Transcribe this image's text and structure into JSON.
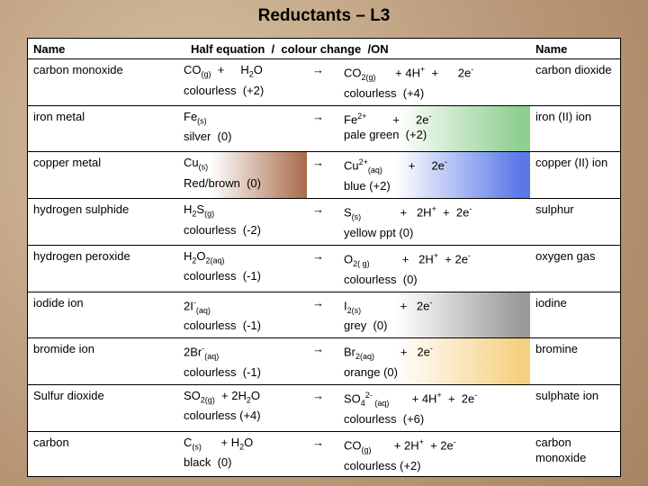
{
  "title": "Reductants – L3",
  "header": [
    "Name",
    "Half equation  /  colour change  /ON",
    "Name"
  ],
  "rows": [
    {
      "name": "carbon monoxide",
      "reactant": [
        "CO",
        {
          "sub": "(g)"
        },
        "  +     H",
        {
          "sub": "2"
        },
        "O"
      ],
      "reactant_colour": "colourless  (+2)",
      "arrow": "→",
      "product": [
        "CO",
        {
          "sub": "2(g)"
        },
        "      + 4H",
        {
          "sup": "+"
        },
        "  +      2e",
        {
          "sup": "-"
        }
      ],
      "product_colour": "colourless  (+4)",
      "product_name": "carbon dioxide"
    },
    {
      "name": "iron metal",
      "reactant": [
        "Fe",
        {
          "sub": "(s)"
        }
      ],
      "reactant_colour": "silver  (0)",
      "arrow": "→",
      "product": [
        "Fe",
        {
          "sup": "2+"
        },
        "        +     2e",
        {
          "sup": "-"
        }
      ],
      "product_colour": "pale green  (+2)",
      "product_fill": "#8fcf8f",
      "product_name": "iron (II) ion"
    },
    {
      "name": "copper metal",
      "reactant": [
        "Cu",
        {
          "sub": "(s)"
        }
      ],
      "reactant_colour": "Red/brown  (0)",
      "reactant_fill": "#a86a4a",
      "arrow": "→",
      "product": [
        "Cu",
        {
          "sup": "2+"
        },
        {
          "sub": "(aq)"
        },
        "        +     2e",
        {
          "sup": "-"
        }
      ],
      "product_colour": "blue (+2)",
      "product_fill": "#5a78e8",
      "product_name": "copper (II) ion"
    },
    {
      "name": "hydrogen sulphide",
      "reactant": [
        "H",
        {
          "sub": "2"
        },
        "S",
        {
          "sub": "(g)"
        }
      ],
      "reactant_colour": "colourless  (-2)",
      "arrow": "→",
      "product": [
        "S",
        {
          "sub": "(s)"
        },
        "            +   2H",
        {
          "sup": "+"
        },
        "  +  2e",
        {
          "sup": "-"
        }
      ],
      "product_colour": "yellow ppt (0)",
      "product_name": "sulphur"
    },
    {
      "name": "hydrogen peroxide",
      "reactant": [
        "H",
        {
          "sub": "2"
        },
        "O",
        {
          "sub": "2(aq)"
        }
      ],
      "reactant_colour": "colourless  (-1)",
      "arrow": "→",
      "product": [
        "O",
        {
          "sub": "2( g)"
        },
        "          +   2H",
        {
          "sup": "+"
        },
        "  + 2e",
        {
          "sup": "-"
        }
      ],
      "product_colour": "colourless  (0)",
      "product_name": "oxygen gas"
    },
    {
      "name": "iodide ion",
      "reactant": [
        "2I",
        {
          "sup": "-"
        },
        {
          "sub": "(aq)"
        }
      ],
      "reactant_colour": "colourless  (-1)",
      "arrow": "→",
      "product": [
        "I",
        {
          "sub": "2(s)"
        },
        "            +   2e",
        {
          "sup": "-"
        }
      ],
      "product_colour": "grey  (0)",
      "product_fill": "#9a9a9a",
      "product_name": "iodine"
    },
    {
      "name": "bromide ion",
      "reactant": [
        "2Br",
        {
          "sup": "-"
        },
        {
          "sub": "(aq)"
        }
      ],
      "reactant_colour": "colourless  (-1)",
      "arrow": "→",
      "product": [
        "Br",
        {
          "sub": "2(aq)"
        },
        "        +   2e",
        {
          "sup": "-"
        }
      ],
      "product_colour": "orange (0)",
      "product_fill": "#f5d080",
      "product_name": "bromine"
    },
    {
      "name": "Sulfur dioxide",
      "reactant": [
        "SO",
        {
          "sub": "2(g)"
        },
        "  + 2H",
        {
          "sub": "2"
        },
        "O"
      ],
      "reactant_colour": "colourless (+4)",
      "arrow": "→",
      "product": [
        "SO",
        {
          "sub": "4"
        },
        {
          "sup": "2-"
        },
        {
          "sub": " (aq)"
        },
        "       + 4H",
        {
          "sup": "+"
        },
        "  +  2e",
        {
          "sup": "-"
        }
      ],
      "product_colour": "colourless  (+6)",
      "product_name": "sulphate ion"
    },
    {
      "name": "carbon",
      "reactant": [
        "C",
        {
          "sub": "(s)"
        },
        "      + H",
        {
          "sub": "2"
        },
        "O"
      ],
      "reactant_colour": "black  (0)",
      "arrow": "→",
      "product": [
        "CO",
        {
          "sub": "(g)"
        },
        "       + 2H",
        {
          "sup": "+"
        },
        "  + 2e",
        {
          "sup": "-"
        }
      ],
      "product_colour": "colourless (+2)",
      "product_name": "carbon monoxide"
    }
  ]
}
